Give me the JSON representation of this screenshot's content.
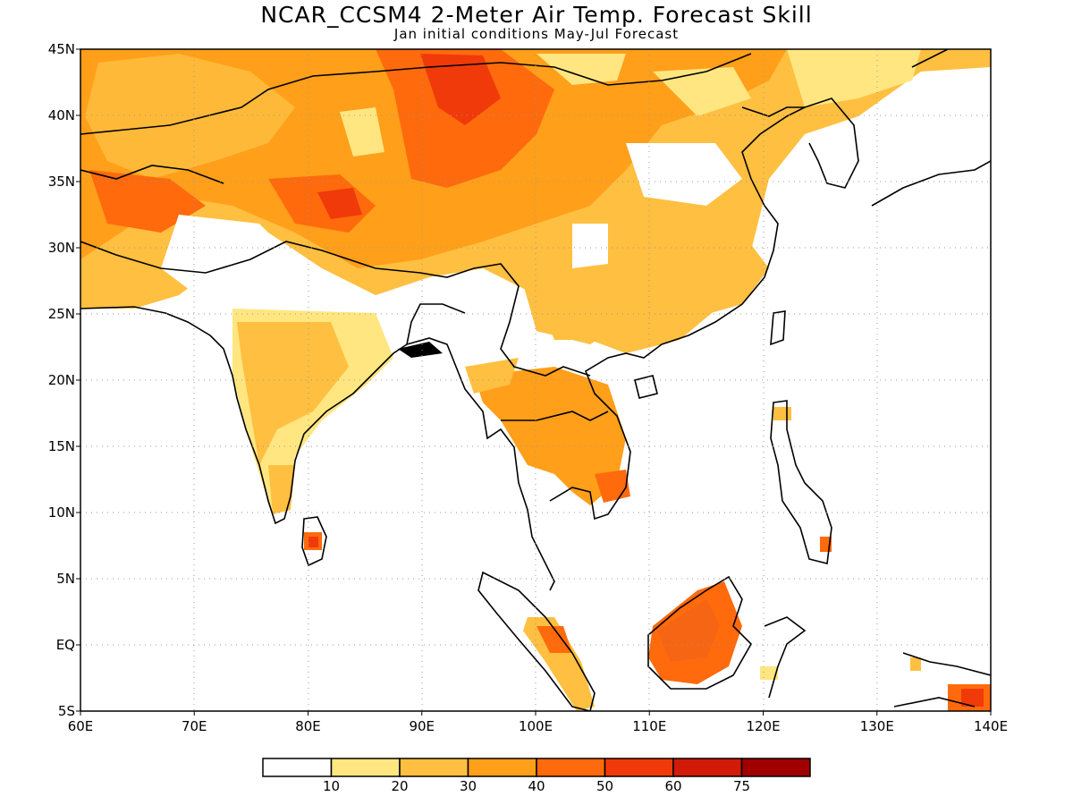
{
  "title": "NCAR_CCSM4 2-Meter Air Temp. Forecast Skill",
  "subtitle": "Jan initial conditions   May-Jul Forecast",
  "map": {
    "lon_range": [
      60,
      140
    ],
    "lat_range": [
      -5,
      45
    ],
    "x_tick_labels": [
      "60E",
      "70E",
      "80E",
      "90E",
      "100E",
      "110E",
      "120E",
      "130E",
      "140E"
    ],
    "y_tick_labels": [
      "45N",
      "40N",
      "35N",
      "30N",
      "25N",
      "20N",
      "15N",
      "10N",
      "5N",
      "EQ",
      "5S"
    ],
    "gridlines": "dotted"
  },
  "legend": {
    "bins": [
      {
        "color": "#ffffff"
      },
      {
        "color": "#ffe680"
      },
      {
        "color": "#ffbf40"
      },
      {
        "color": "#ff9f1a"
      },
      {
        "color": "#ff6a0d"
      },
      {
        "color": "#f03a0a"
      },
      {
        "color": "#d21a08"
      },
      {
        "color": "#a00000"
      }
    ],
    "labels": [
      "10",
      "20",
      "30",
      "40",
      "50",
      "60",
      "75"
    ]
  },
  "colors": {
    "land_outline": "#000000",
    "grid": "#aaaaaa"
  }
}
